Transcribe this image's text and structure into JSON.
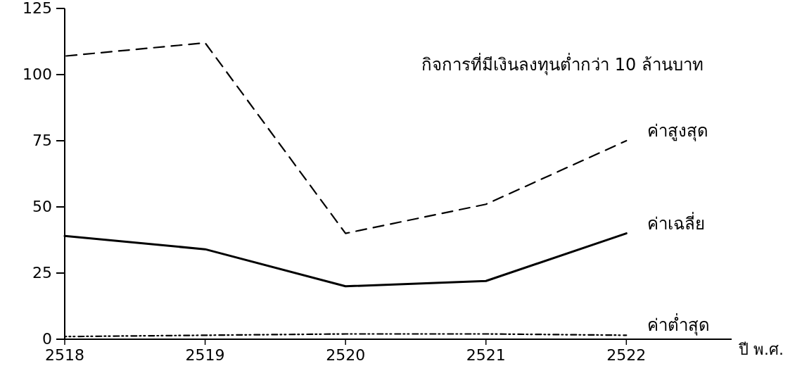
{
  "chart_data": {
    "type": "line",
    "title": "กิจการที่มีเงินลงทุนต่ำกว่า 10 ล้านบาท",
    "xlabel": "ปี พ.ศ.",
    "x": [
      2518,
      2519,
      2520,
      2521,
      2522
    ],
    "xlim": [
      2518,
      2522.75
    ],
    "xticks": [
      2518,
      2519,
      2520,
      2521,
      2522
    ],
    "ylim": [
      0,
      125
    ],
    "yticks": [
      0,
      25,
      50,
      75,
      100,
      125
    ],
    "grid": false,
    "legend": false,
    "marker": "none",
    "series": [
      {
        "name": "ค่าสูงสุด",
        "color": "#000000",
        "line_style": "dashed",
        "values": [
          107,
          112,
          40,
          51,
          75
        ]
      },
      {
        "name": "ค่าเฉลี่ย",
        "color": "#000000",
        "line_style": "solid",
        "values": [
          39,
          34,
          20,
          22,
          40
        ]
      },
      {
        "name": "ค่าต่ำสุด",
        "color": "#000000",
        "line_style": "dotted",
        "values": [
          1,
          1.5,
          2,
          2,
          1.5
        ]
      }
    ]
  }
}
